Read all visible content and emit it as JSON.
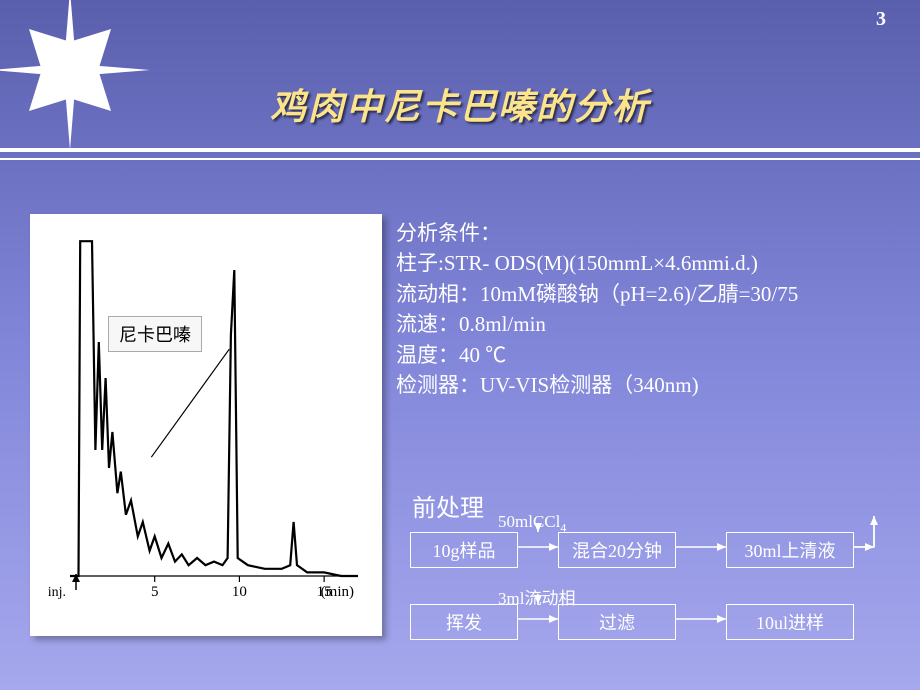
{
  "page_number": "3",
  "title": "鸡肉中尼卡巴嗪的分析",
  "chromatogram": {
    "type": "line",
    "peak_label": "尼卡巴嗪",
    "x_axis_label": "(min)",
    "inj_label": "inj.",
    "xlim": [
      0,
      17
    ],
    "ylim": [
      0,
      100
    ],
    "xticks": [
      5,
      10,
      15
    ],
    "tick_fontsize": 15,
    "background_color": "#ffffff",
    "line_color": "#000000",
    "line_width": 2.2,
    "points": [
      [
        0.0,
        5
      ],
      [
        0.5,
        5
      ],
      [
        0.6,
        98
      ],
      [
        1.3,
        98
      ],
      [
        1.5,
        40
      ],
      [
        1.7,
        70
      ],
      [
        1.9,
        40
      ],
      [
        2.1,
        60
      ],
      [
        2.3,
        35
      ],
      [
        2.5,
        45
      ],
      [
        2.8,
        28
      ],
      [
        3.0,
        34
      ],
      [
        3.3,
        22
      ],
      [
        3.6,
        26
      ],
      [
        4.0,
        16
      ],
      [
        4.3,
        20
      ],
      [
        4.7,
        12
      ],
      [
        5.0,
        16
      ],
      [
        5.4,
        10
      ],
      [
        5.8,
        14
      ],
      [
        6.2,
        9
      ],
      [
        6.6,
        11
      ],
      [
        7.0,
        8
      ],
      [
        7.5,
        10
      ],
      [
        8.0,
        8
      ],
      [
        8.5,
        9
      ],
      [
        9.0,
        8
      ],
      [
        9.3,
        10
      ],
      [
        9.5,
        72
      ],
      [
        9.7,
        90
      ],
      [
        9.9,
        10
      ],
      [
        10.5,
        8
      ],
      [
        11.5,
        7
      ],
      [
        12.5,
        7
      ],
      [
        13.0,
        8
      ],
      [
        13.2,
        20
      ],
      [
        13.4,
        8
      ],
      [
        14.0,
        6
      ],
      [
        15.0,
        6
      ],
      [
        16.0,
        5
      ],
      [
        17.0,
        5
      ]
    ],
    "label_pointer": {
      "from": [
        4.8,
        38
      ],
      "to": [
        9.4,
        68
      ]
    }
  },
  "conditions": {
    "heading": "分析条件：",
    "lines": [
      "柱子:STR- ODS(M)(150mmL×4.6mmi.d.)",
      "流动相：10mM磷酸钠（pH=2.6)/乙腈=30/75",
      "流速：0.8ml/min",
      "温度：40 ℃",
      "检测器：UV-VIS检测器（340nm)"
    ],
    "text_color": "#ffffff",
    "fontsize": 21
  },
  "pretreatment": {
    "heading": "前处理",
    "boxes": {
      "sample": "10g样品",
      "mix": "混合20分钟",
      "supernatant": "30ml上清液",
      "evaporate": "挥发",
      "filter": "过滤",
      "inject": "10ul进样"
    },
    "labels": {
      "top1": "50mlCCl",
      "top1_sub": "4",
      "top2": "3ml流动相"
    },
    "box_border_color": "#ffffff",
    "box_text_color": "#ffffff",
    "arrow_color": "#ffffff"
  },
  "colors": {
    "bg_top": "#5a5fad",
    "bg_mid": "#8186d9",
    "bg_bot": "#a6a8ed",
    "title": "#fbe48a",
    "title_shadow": "#000000",
    "rule": "#ffffff",
    "star_fill": "#ffffff"
  }
}
